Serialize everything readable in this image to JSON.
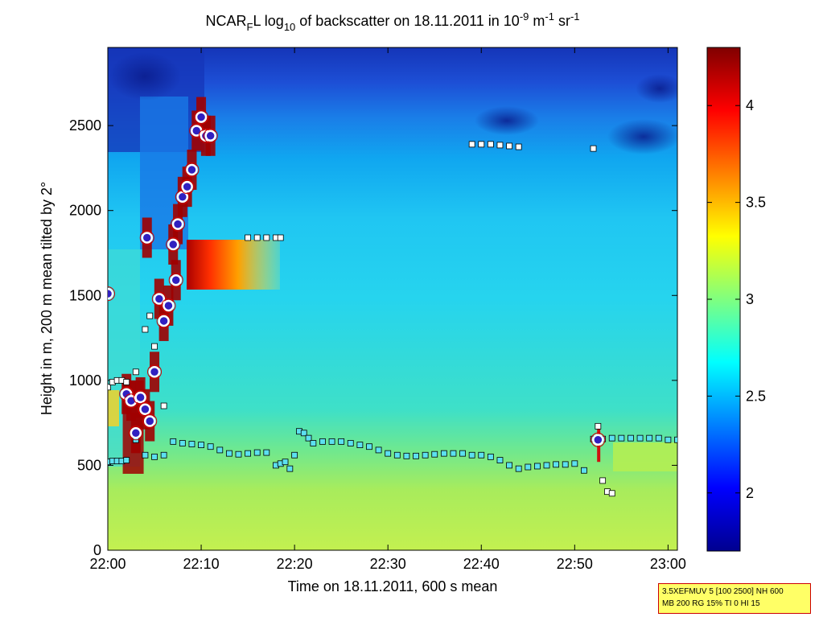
{
  "chart_data": {
    "type": "heatmap",
    "title": {
      "prefix": "NCAR",
      "prefix_sub": "F",
      "mid": "L log",
      "log_sub": "10",
      "text": " of backscatter on 18.11.2011 in 10",
      "exp1": "-9",
      "unit_m": " m",
      "exp2": "-1",
      "unit_sr": " sr",
      "exp3": "-1"
    },
    "xlabel": "Time on 18.11.2011, 600 s mean",
    "ylabel": "Height in m, 200 m mean tilted by 2°",
    "x_range_min": [
      0,
      61
    ],
    "y_range_m": [
      0,
      2960
    ],
    "x_ticks": [
      {
        "min": 0,
        "label": "22:00"
      },
      {
        "min": 10,
        "label": "22:10"
      },
      {
        "min": 20,
        "label": "22:20"
      },
      {
        "min": 30,
        "label": "22:30"
      },
      {
        "min": 40,
        "label": "22:40"
      },
      {
        "min": 50,
        "label": "22:50"
      },
      {
        "min": 60,
        "label": "23:00"
      }
    ],
    "y_ticks": [
      0,
      500,
      1000,
      1500,
      2000,
      2500
    ],
    "y_tick_labels": [
      "0",
      "500",
      "1000",
      "1500",
      "2000",
      "2500"
    ],
    "colorbar": {
      "min": 1.7,
      "max": 4.3,
      "ticks": [
        2,
        2.5,
        3,
        3.5,
        4
      ],
      "tick_labels": [
        "2",
        "2.5",
        "3",
        "3.5",
        "4"
      ],
      "colormap": "jet"
    },
    "series": [
      {
        "name": "boundary layer top (cyan squares)",
        "x": [
          0,
          0.5,
          1,
          1.5,
          2,
          3,
          4,
          5,
          6,
          7,
          8,
          9,
          10,
          11,
          12,
          13,
          14,
          15,
          16,
          17,
          18,
          18.5,
          19,
          19.5,
          20,
          20.5,
          21,
          21.5,
          22,
          23,
          24,
          25,
          26,
          27,
          28,
          29,
          30,
          31,
          32,
          33,
          34,
          35,
          36,
          37,
          38,
          39,
          40,
          41,
          42,
          43,
          44,
          45,
          46,
          47,
          48,
          49,
          50,
          51,
          52,
          53,
          54,
          55,
          56,
          57,
          58,
          59,
          60,
          61
        ],
        "y": [
          520,
          525,
          525,
          525,
          530,
          650,
          560,
          550,
          560,
          640,
          630,
          625,
          620,
          610,
          590,
          570,
          565,
          570,
          575,
          575,
          500,
          510,
          520,
          480,
          560,
          700,
          690,
          660,
          630,
          640,
          640,
          640,
          630,
          620,
          610,
          590,
          570,
          560,
          555,
          555,
          560,
          565,
          570,
          570,
          570,
          560,
          560,
          550,
          530,
          500,
          480,
          490,
          495,
          500,
          505,
          505,
          510,
          470,
          655,
          655,
          660,
          660,
          660,
          660,
          660,
          660,
          650,
          650
        ]
      },
      {
        "name": "secondary layer (white squares)",
        "x": [
          0,
          0.5,
          1,
          1.5,
          2,
          3,
          4,
          4.5,
          5,
          6,
          15,
          16,
          17,
          18,
          18.5,
          39,
          40,
          41,
          42,
          43,
          44,
          52,
          52.5,
          53,
          53.5,
          54
        ],
        "y": [
          960,
          990,
          1000,
          1000,
          990,
          1050,
          1300,
          1380,
          1200,
          850,
          1840,
          1840,
          1840,
          1840,
          1840,
          2390,
          2390,
          2390,
          2385,
          2380,
          2375,
          2365,
          730,
          410,
          345,
          335
        ]
      },
      {
        "name": "aerosol/cloud layer (red circles)",
        "x": [
          0,
          2,
          2.5,
          3,
          3.5,
          4,
          4.2,
          4.5,
          5,
          5.5,
          6,
          6.5,
          7,
          7.3,
          7.5,
          8,
          8.5,
          9,
          9.5,
          10,
          10.5,
          11,
          52.5
        ],
        "y": [
          1510,
          920,
          880,
          690,
          900,
          830,
          1840,
          760,
          1050,
          1480,
          1350,
          1440,
          1800,
          1590,
          1920,
          2080,
          2140,
          2240,
          2470,
          2550,
          2440,
          2440,
          650
        ]
      }
    ]
  },
  "info_box": {
    "line1": "3.5XEFMUV 5 [100 2500] NH 600",
    "line2": "MB 200 RG 15% TI 0 HI 15"
  }
}
